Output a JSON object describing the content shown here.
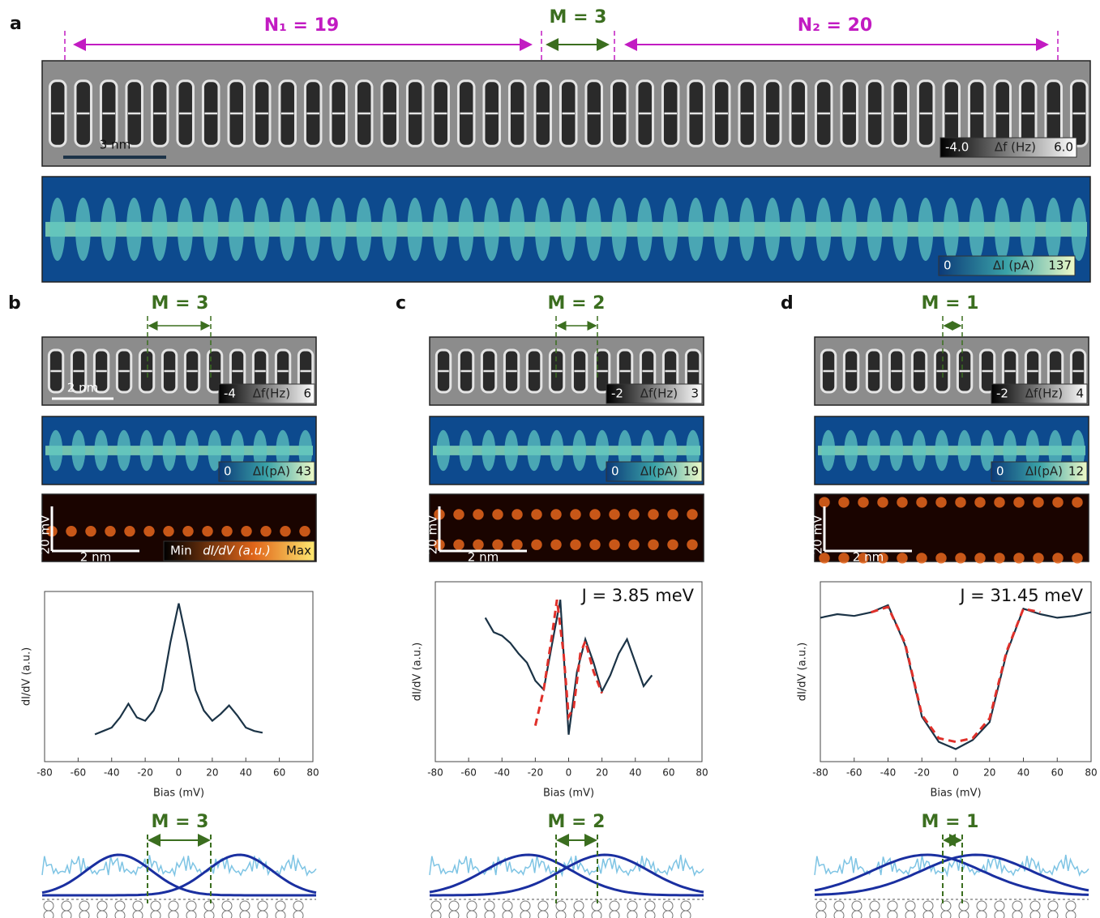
{
  "panel_a": {
    "label": "a",
    "n1": "N₁ = 19",
    "m": "M = 3",
    "n2": "N₂ = 20",
    "scale_bar": "3 nm",
    "df_min": "-4.0",
    "df_unit": "Δf (Hz)",
    "df_max": "6.0",
    "di_min": "0",
    "di_unit": "ΔI (pA)",
    "di_max": "137"
  },
  "panels": [
    {
      "label": "b",
      "m": "M = 3",
      "scale_bar": "2 nm",
      "df_min": "-4",
      "df_unit": "Δf(Hz)",
      "df_max": "6",
      "di_min": "0",
      "di_unit": "ΔI(pA)",
      "di_max": "43",
      "map_y": "20 mV",
      "map_x": "2 nm",
      "map_min": "Min",
      "map_unit": "dI/dV (a.u.)",
      "map_max": "Max",
      "schematic_m": "M = 3"
    },
    {
      "label": "c",
      "m": "M = 2",
      "df_min": "-2",
      "df_unit": "Δf(Hz)",
      "df_max": "3",
      "di_min": "0",
      "di_unit": "ΔI(pA)",
      "di_max": "19",
      "map_y": "20 mV",
      "map_x": "2 nm",
      "schematic_m": "M = 2"
    },
    {
      "label": "d",
      "m": "M = 1",
      "df_min": "-2",
      "df_unit": "Δf(Hz)",
      "df_max": "4",
      "di_min": "0",
      "di_unit": "ΔI(pA)",
      "di_max": "12",
      "map_y": "20 mV",
      "map_x": "2 nm",
      "schematic_m": "M = 1"
    }
  ],
  "chart_data": [
    {
      "type": "line",
      "x_label": "Bias (mV)",
      "y_label": "dI/dV (a.u.)",
      "xlim": [
        -80,
        80
      ],
      "ylim": [
        0,
        10
      ],
      "xticks": [
        -80,
        -60,
        -40,
        -20,
        0,
        20,
        40,
        60,
        80
      ],
      "series": [
        {
          "color": "#1b3346",
          "style": "solid",
          "x": [
            -50,
            -45,
            -40,
            -35,
            -30,
            -25,
            -20,
            -15,
            -10,
            -5,
            0,
            5,
            10,
            15,
            20,
            25,
            30,
            35,
            40,
            45,
            50
          ],
          "values": [
            1.6,
            1.8,
            2.0,
            2.6,
            3.4,
            2.6,
            2.4,
            3.0,
            4.2,
            7.0,
            9.3,
            7.0,
            4.2,
            3.0,
            2.4,
            2.8,
            3.3,
            2.7,
            2.0,
            1.8,
            1.7
          ]
        }
      ]
    },
    {
      "type": "line",
      "x_label": "Bias (mV)",
      "y_label": "dI/dV (a.u.)",
      "xlim": [
        -80,
        80
      ],
      "ylim": [
        0,
        10
      ],
      "xticks": [
        -80,
        -60,
        -40,
        -20,
        0,
        20,
        40,
        60,
        80
      ],
      "annotation": "J = 3.85 meV",
      "series": [
        {
          "color": "#1b3346",
          "style": "solid",
          "x": [
            -50,
            -45,
            -40,
            -35,
            -30,
            -25,
            -20,
            -15,
            -10,
            -5,
            0,
            5,
            10,
            15,
            20,
            25,
            30,
            35,
            40,
            45,
            50
          ],
          "values": [
            8.0,
            7.2,
            7.0,
            6.6,
            6.0,
            5.5,
            4.5,
            4.0,
            6.5,
            9.0,
            1.5,
            5.0,
            6.8,
            5.5,
            3.9,
            4.8,
            6.0,
            6.8,
            5.5,
            4.2,
            4.8
          ]
        },
        {
          "color": "#e0302a",
          "style": "dashed",
          "x": [
            -20,
            -15,
            -10,
            -7,
            -3,
            0,
            3,
            7,
            10,
            15,
            20
          ],
          "values": [
            2.0,
            4.0,
            7.0,
            9.0,
            6.0,
            2.5,
            3.0,
            6.0,
            6.7,
            5.0,
            3.8
          ]
        }
      ]
    },
    {
      "type": "line",
      "x_label": "Bias (mV)",
      "y_label": "dI/dV (a.u.)",
      "xlim": [
        -80,
        80
      ],
      "ylim": [
        0,
        10
      ],
      "xticks": [
        -80,
        -60,
        -40,
        -20,
        0,
        20,
        40,
        60,
        80
      ],
      "annotation": "J = 31.45 meV",
      "series": [
        {
          "color": "#1b3346",
          "style": "solid",
          "x": [
            -80,
            -70,
            -60,
            -50,
            -40,
            -30,
            -20,
            -10,
            0,
            10,
            20,
            30,
            40,
            50,
            60,
            70,
            80
          ],
          "values": [
            8.0,
            8.2,
            8.1,
            8.3,
            8.7,
            6.5,
            2.5,
            1.1,
            0.7,
            1.2,
            2.2,
            6.0,
            8.5,
            8.2,
            8.0,
            8.1,
            8.3
          ]
        },
        {
          "color": "#e0302a",
          "style": "dashed",
          "x": [
            -50,
            -40,
            -30,
            -20,
            -10,
            0,
            10,
            20,
            30,
            40,
            50
          ],
          "values": [
            8.3,
            8.6,
            6.6,
            2.6,
            1.3,
            1.1,
            1.3,
            2.4,
            6.1,
            8.5,
            8.3
          ]
        }
      ]
    }
  ]
}
